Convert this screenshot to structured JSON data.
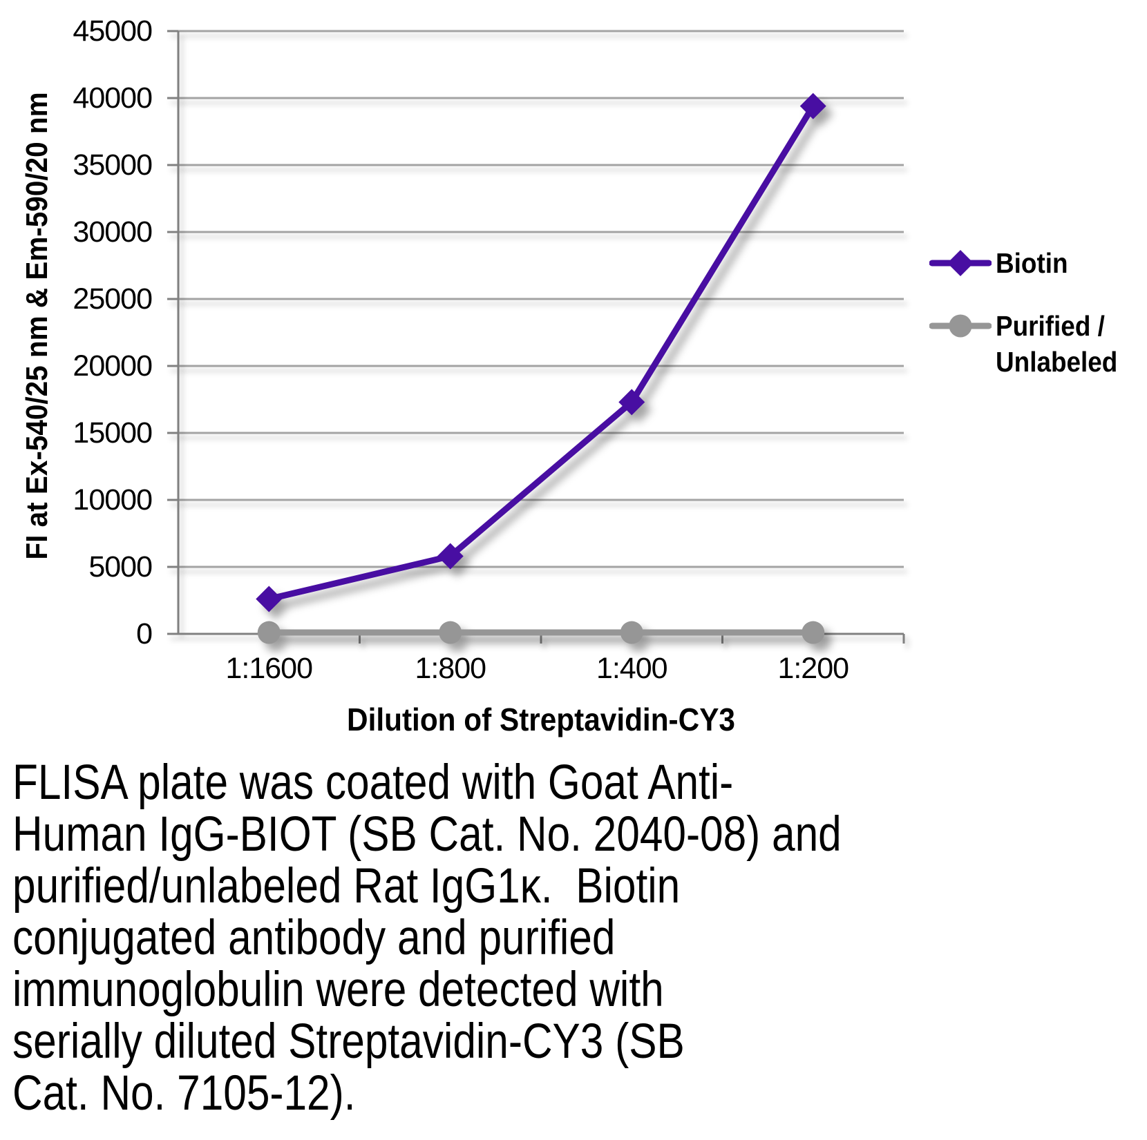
{
  "chart_data": {
    "type": "line",
    "title": "",
    "xlabel": "Dilution of Streptavidin-CY3",
    "ylabel": "FI at Ex-540/25 nm & Em-590/20 nm",
    "categories": [
      "1:1600",
      "1:800",
      "1:400",
      "1:200"
    ],
    "ylim": [
      0,
      45000
    ],
    "ytick_step": 5000,
    "yticks": [
      0,
      5000,
      10000,
      15000,
      20000,
      25000,
      30000,
      35000,
      40000,
      45000
    ],
    "grid": "horizontal-on",
    "legend_position": "right",
    "series": [
      {
        "name": "Biotin",
        "legend_lines": [
          "Biotin"
        ],
        "color": "#480ea2",
        "marker": "diamond",
        "values": [
          2600,
          5800,
          17300,
          39400
        ]
      },
      {
        "name": "Purified / Unlabeled",
        "legend_lines": [
          "Purified /",
          "Unlabeled"
        ],
        "color": "#969696",
        "marker": "circle",
        "values": [
          100,
          100,
          100,
          100
        ]
      }
    ],
    "colors": {
      "gridline": "#a3a3a3",
      "axis": "#808080",
      "tick_text": "#000000"
    }
  },
  "caption": {
    "lines": [
      "FLISA plate was coated with Goat Anti-",
      "Human IgG-BIOT (SB Cat. No. 2040-08) and",
      "purified/unlabeled Rat IgG1κ.  Biotin",
      "conjugated antibody and purified",
      "immunoglobulin were detected with",
      "serially diluted Streptavidin-CY3 (SB",
      "Cat. No. 7105-12)."
    ]
  }
}
